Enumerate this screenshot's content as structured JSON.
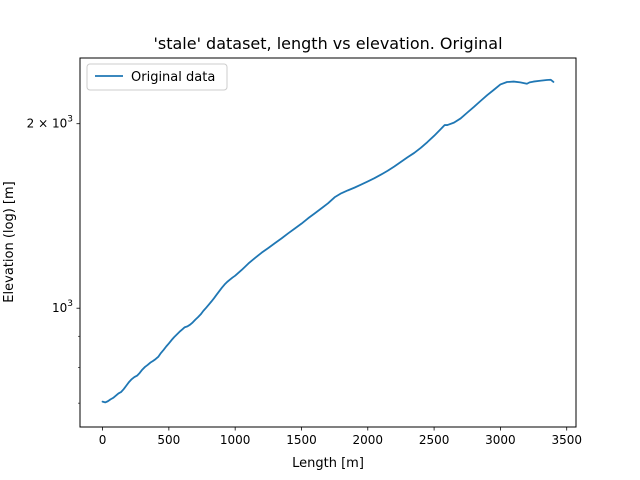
{
  "chart_data": {
    "type": "line",
    "title": "'stale' dataset, length vs elevation. Original",
    "xlabel": "Length [m]",
    "ylabel": "Elevation (log) [m]",
    "yscale": "log",
    "xlim": [
      -170,
      3570
    ],
    "ylim": [
      640,
      2560
    ],
    "x_ticks": [
      0,
      500,
      1000,
      1500,
      2000,
      2500,
      3000,
      3500
    ],
    "x_tick_labels": [
      "0",
      "500",
      "1000",
      "1500",
      "2000",
      "2500",
      "3000",
      "3500"
    ],
    "y_major_ticks": [
      1000,
      2000
    ],
    "y_minor_ticks": [
      700,
      800,
      900,
      3000
    ],
    "y_tick_labels": [
      {
        "mantissa": "",
        "base": "10",
        "exp": "3"
      },
      {
        "mantissa": "2 × ",
        "base": "10",
        "exp": "3"
      }
    ],
    "legend": {
      "position": "top-left",
      "entries": [
        "Original data"
      ]
    },
    "grid": false,
    "series": [
      {
        "name": "Original data",
        "color": "#1f77b4",
        "x": [
          0,
          20,
          40,
          60,
          80,
          100,
          120,
          140,
          160,
          180,
          200,
          220,
          240,
          260,
          280,
          300,
          320,
          340,
          360,
          380,
          400,
          420,
          440,
          460,
          480,
          500,
          520,
          540,
          560,
          580,
          600,
          620,
          640,
          660,
          680,
          700,
          720,
          740,
          760,
          780,
          800,
          820,
          840,
          860,
          880,
          900,
          920,
          940,
          960,
          980,
          1000,
          1050,
          1100,
          1150,
          1200,
          1250,
          1300,
          1350,
          1400,
          1450,
          1500,
          1550,
          1600,
          1650,
          1700,
          1750,
          1800,
          1850,
          1900,
          1950,
          2000,
          2050,
          2100,
          2150,
          2200,
          2250,
          2300,
          2350,
          2400,
          2450,
          2500,
          2550,
          2580,
          2600,
          2650,
          2700,
          2750,
          2800,
          2850,
          2900,
          2950,
          3000,
          3050,
          3100,
          3150,
          3200,
          3220,
          3250,
          3300,
          3350,
          3380,
          3400
        ],
        "y": [
          704,
          702,
          705,
          710,
          714,
          720,
          726,
          730,
          738,
          748,
          758,
          766,
          772,
          776,
          784,
          794,
          802,
          808,
          815,
          820,
          826,
          833,
          845,
          855,
          866,
          876,
          887,
          897,
          906,
          915,
          923,
          931,
          934,
          940,
          948,
          958,
          967,
          977,
          990,
          1001,
          1013,
          1025,
          1038,
          1052,
          1066,
          1080,
          1093,
          1104,
          1113,
          1122,
          1130,
          1155,
          1183,
          1208,
          1232,
          1254,
          1277,
          1300,
          1325,
          1349,
          1374,
          1402,
          1428,
          1455,
          1483,
          1517,
          1540,
          1557,
          1573,
          1591,
          1610,
          1630,
          1652,
          1676,
          1703,
          1733,
          1763,
          1792,
          1827,
          1867,
          1911,
          1960,
          1990,
          1990,
          2008,
          2040,
          2085,
          2130,
          2178,
          2226,
          2271,
          2318,
          2339,
          2343,
          2336,
          2324,
          2336,
          2343,
          2350,
          2357,
          2359,
          2340
        ]
      }
    ]
  }
}
